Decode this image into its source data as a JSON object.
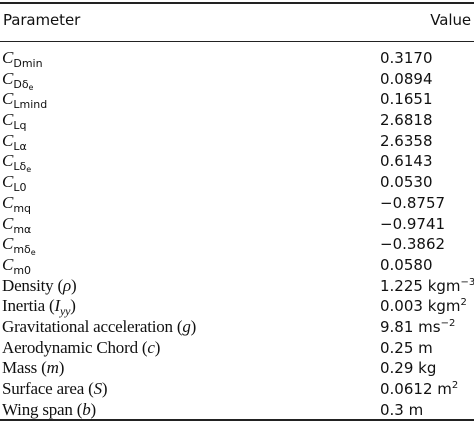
{
  "header": {
    "param_label": "Parameter",
    "value_label": "Value"
  },
  "rows": [
    {
      "symbol": "C",
      "subscript": "Dmin",
      "value": "0.3170"
    },
    {
      "symbol": "C",
      "subscript": "Dδ",
      "subsub": "e",
      "value": "0.0894"
    },
    {
      "symbol": "C",
      "subscript": "Lmind",
      "value": "0.1651"
    },
    {
      "symbol": "C",
      "subscript": "Lq",
      "value": "2.6818"
    },
    {
      "symbol": "C",
      "subscript": "Lα",
      "value": "2.6358"
    },
    {
      "symbol": "C",
      "subscript": "Lδ",
      "subsub": "e",
      "value": "0.6143"
    },
    {
      "symbol": "C",
      "subscript": "L0",
      "value": "0.0530"
    },
    {
      "symbol": "C",
      "subscript": "mq",
      "value": "−0.8757"
    },
    {
      "symbol": "C",
      "subscript": "mα",
      "value": "−0.9741"
    },
    {
      "symbol": "C",
      "subscript": "mδ",
      "subsub": "e",
      "value": "−0.3862"
    },
    {
      "symbol": "C",
      "subscript": "m0",
      "value": "0.0580"
    },
    {
      "label": "Density (",
      "var": "ρ",
      "close": ")",
      "value": "1.225 kgm",
      "value_sup": "−3"
    },
    {
      "label": "Inertia (",
      "var": "I",
      "var_sub": "yy",
      "close": ")",
      "value": "0.003 kgm",
      "value_sup": "2"
    },
    {
      "label": "Gravitational acceleration (",
      "var": "g",
      "close": ")",
      "value": "9.81 ms",
      "value_sup": "−2"
    },
    {
      "label": "Aerodynamic Chord (",
      "var": "c",
      "close": ")",
      "value": "0.25 m"
    },
    {
      "label": "Mass (",
      "var": "m",
      "close": ")",
      "value": "0.29 kg"
    },
    {
      "label": "Surface area (",
      "var": "S",
      "close": ")",
      "value": "0.0612 m",
      "value_sup": "2"
    },
    {
      "label": "Wing span (",
      "var": "b",
      "close": ")",
      "value": "0.3 m"
    }
  ]
}
